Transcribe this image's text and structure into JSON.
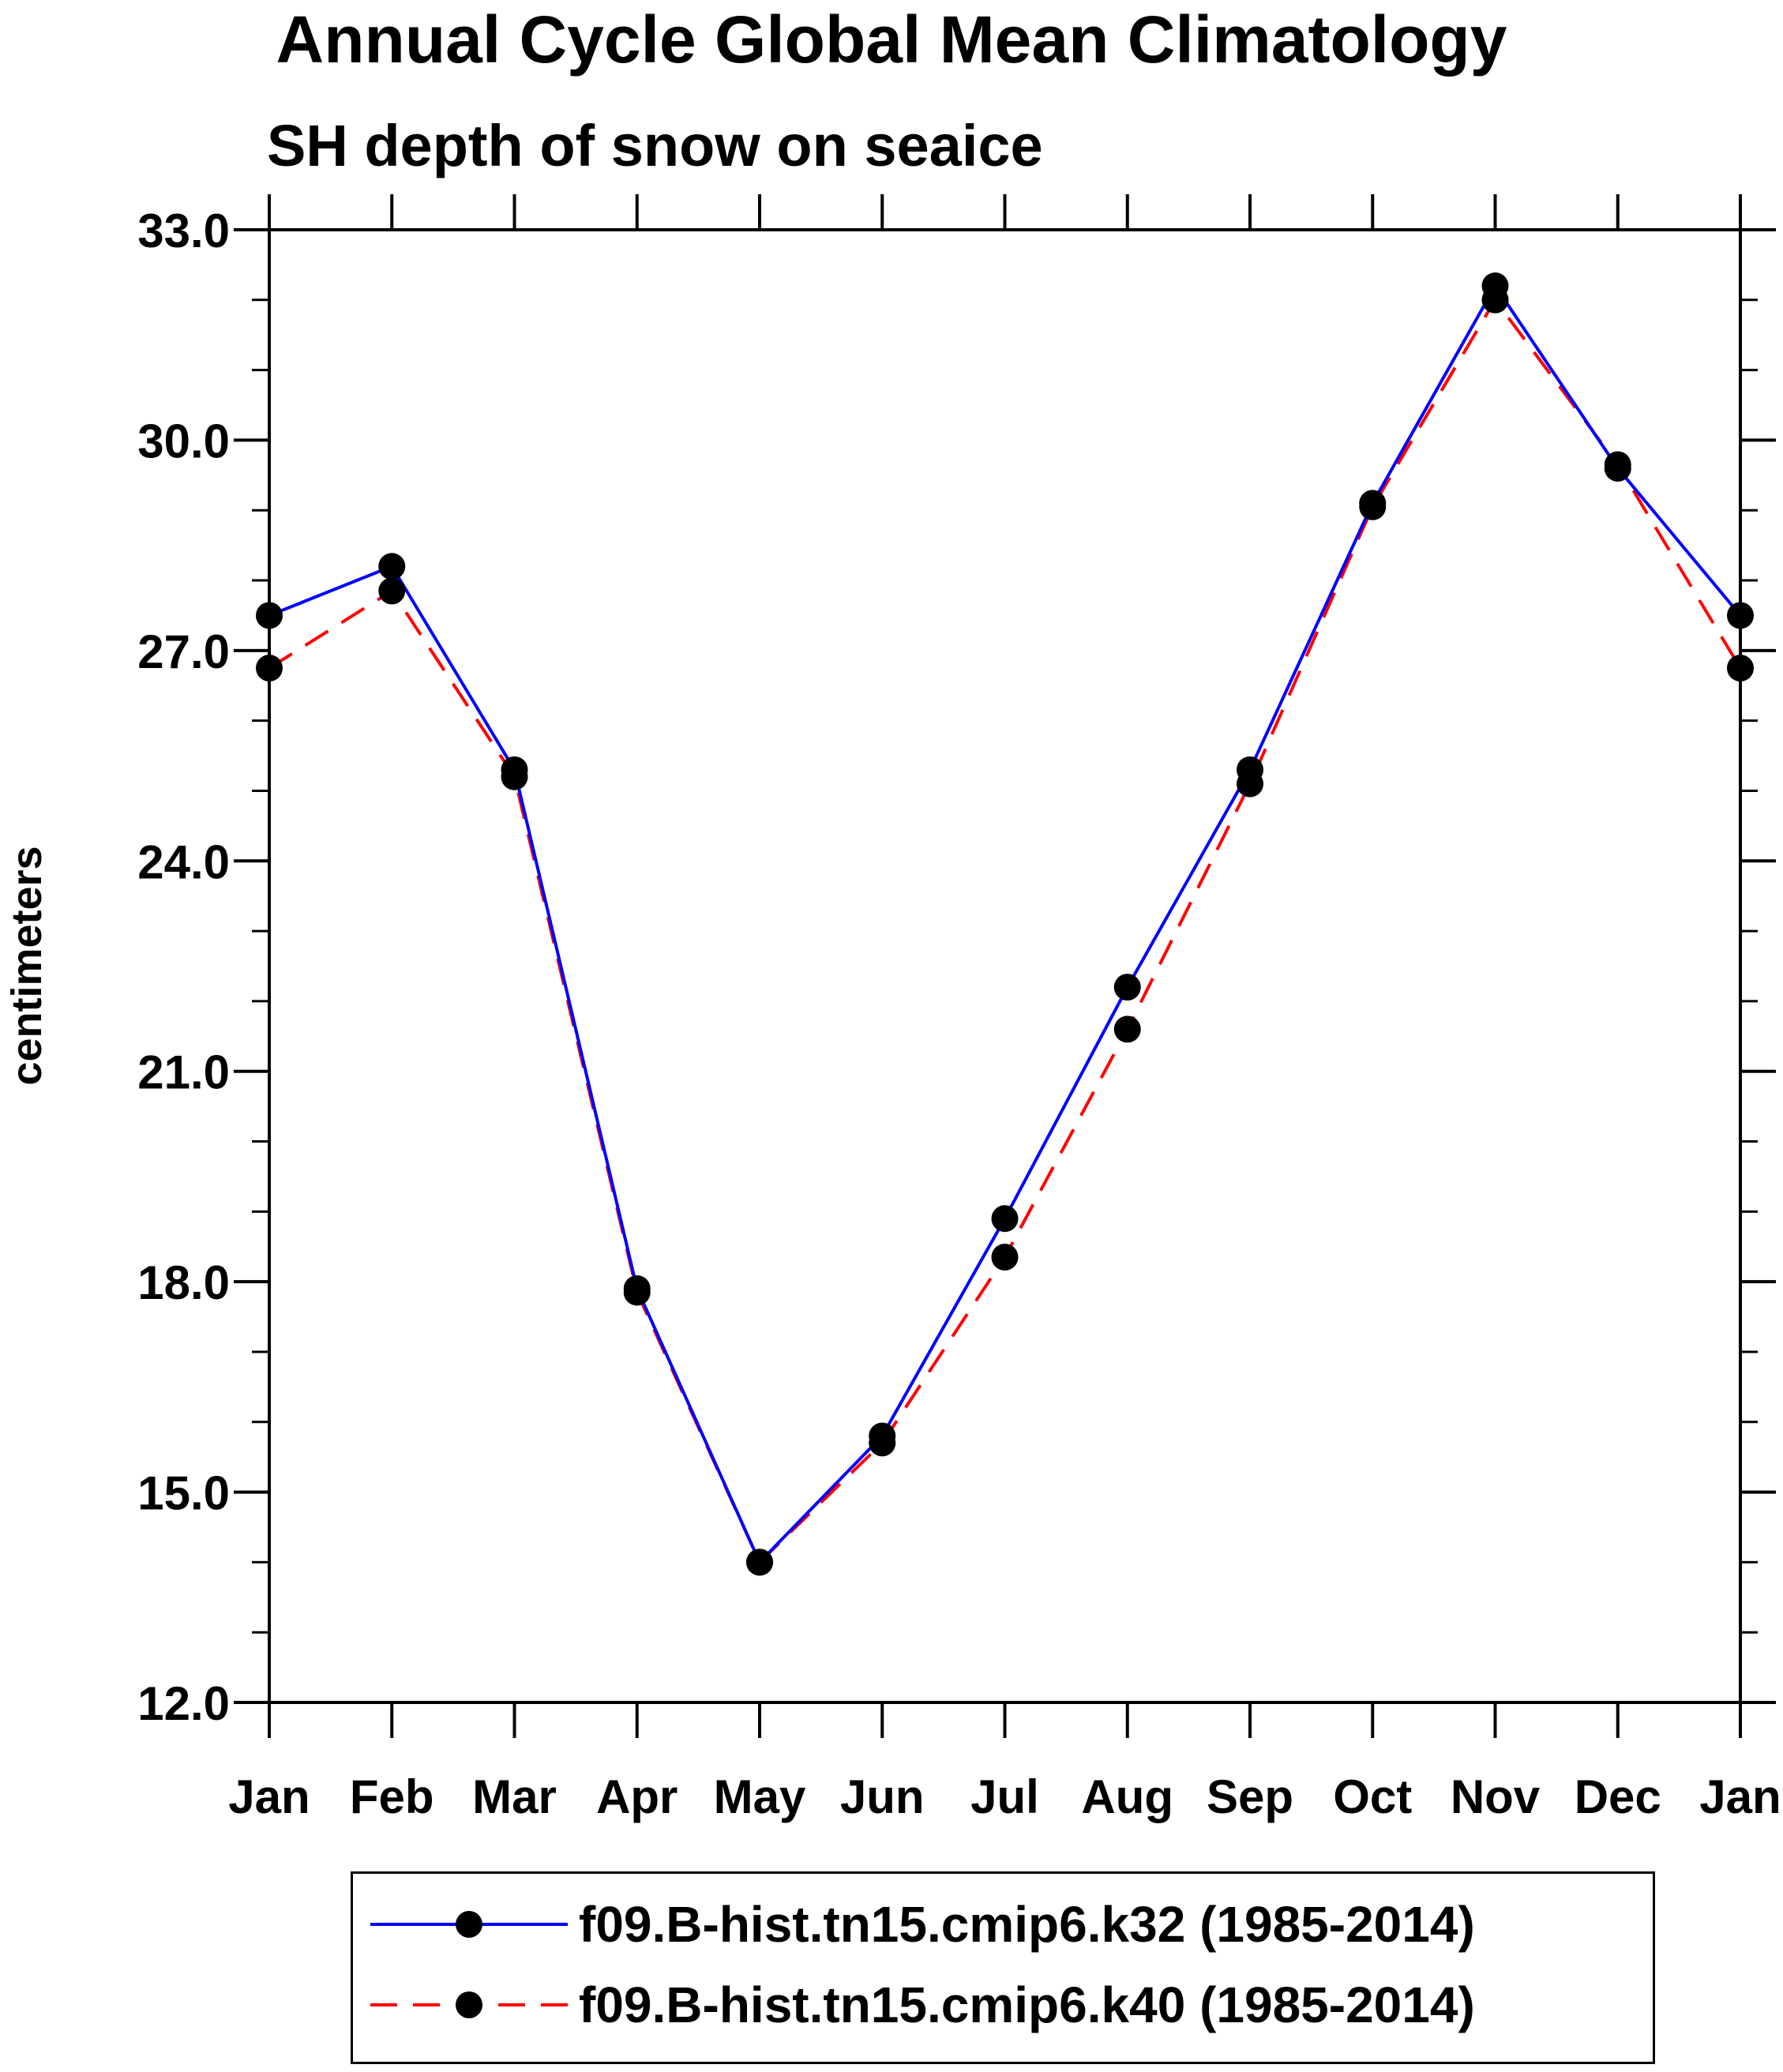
{
  "chart_data": {
    "type": "line",
    "title": "Annual Cycle Global Mean Climatology",
    "subtitle": "SH depth of snow on seaice",
    "xlabel": "",
    "ylabel": "centimeters",
    "categories": [
      "Jan",
      "Feb",
      "Mar",
      "Apr",
      "May",
      "Jun",
      "Jul",
      "Aug",
      "Sep",
      "Oct",
      "Nov",
      "Dec",
      "Jan"
    ],
    "ylim": [
      12.0,
      33.0
    ],
    "yticks": [
      "12.0",
      "15.0",
      "18.0",
      "21.0",
      "24.0",
      "27.0",
      "30.0",
      "33.0"
    ],
    "yminor_step": 1.0,
    "grid": false,
    "legend_position": "bottom",
    "series": [
      {
        "name": "f09.B-hist.tn15.cmip6.k32 (1985-2014)",
        "color": "#0000ff",
        "style": "solid",
        "marker": "filled-circle",
        "values": [
          27.5,
          28.2,
          25.3,
          17.9,
          14.0,
          15.8,
          18.9,
          22.2,
          25.3,
          29.1,
          32.2,
          29.6,
          27.5
        ]
      },
      {
        "name": "f09.B-hist.tn15.cmip6.k40 (1985-2014)",
        "color": "#ff0000",
        "style": "dashed",
        "marker": "filled-circle",
        "values": [
          26.75,
          27.85,
          25.2,
          17.85,
          14.0,
          15.7,
          18.35,
          21.6,
          25.1,
          29.05,
          32.0,
          29.65,
          26.75
        ]
      }
    ]
  }
}
